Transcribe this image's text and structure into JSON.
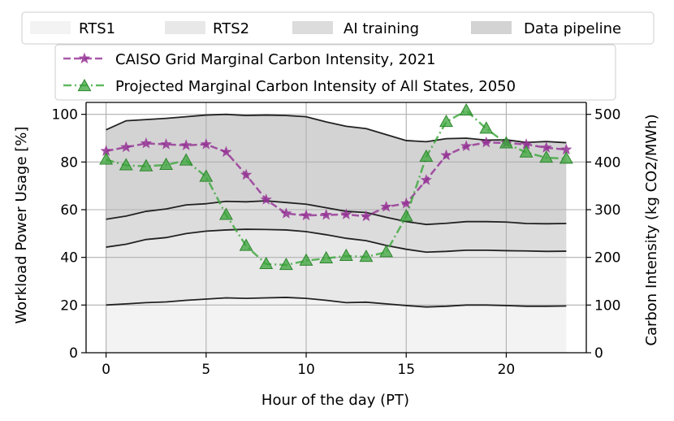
{
  "chart_data": {
    "type": "area",
    "xlabel": "Hour of the day (PT)",
    "ylabel": "Workload Power Usage [%]",
    "y2label": "Carbon Intensity (kg CO2/MWh)",
    "xlim": [
      -1,
      24
    ],
    "ylim": [
      0,
      105
    ],
    "y2lim": [
      0,
      525
    ],
    "xticks": [
      0,
      5,
      10,
      15,
      20
    ],
    "yticks": [
      0,
      20,
      40,
      60,
      80,
      100
    ],
    "y2ticks": [
      0,
      100,
      200,
      300,
      400,
      500
    ],
    "grid": true,
    "x": [
      0,
      1,
      2,
      3,
      4,
      5,
      6,
      7,
      8,
      9,
      10,
      11,
      12,
      13,
      14,
      15,
      16,
      17,
      18,
      19,
      20,
      21,
      22,
      23
    ],
    "stack_series": [
      {
        "name": "RTS1",
        "color": "#f3f3f3",
        "values": [
          20.0,
          20.5,
          21.0,
          21.3,
          22.0,
          22.5,
          23.0,
          22.8,
          23.0,
          23.2,
          22.8,
          22.0,
          21.0,
          21.2,
          20.5,
          19.8,
          19.2,
          19.5,
          20.0,
          20.0,
          19.8,
          19.5,
          19.5,
          19.6
        ]
      },
      {
        "name": "RTS2",
        "color": "#e8e8e8",
        "values": [
          24.3,
          25.0,
          26.5,
          27.0,
          28.0,
          28.5,
          28.5,
          29.0,
          28.7,
          28.3,
          28.0,
          27.5,
          27.0,
          25.8,
          24.5,
          23.6,
          23.0,
          23.0,
          23.0,
          23.0,
          23.0,
          23.2,
          23.0,
          23.0
        ]
      },
      {
        "name": "AI training",
        "color": "#dcdcdc",
        "values": [
          11.7,
          11.8,
          11.8,
          12.0,
          12.0,
          11.5,
          12.0,
          11.5,
          12.0,
          11.5,
          11.5,
          11.3,
          11.3,
          11.8,
          11.8,
          11.6,
          11.6,
          11.8,
          12.0,
          12.0,
          12.0,
          11.5,
          11.6,
          11.6
        ]
      },
      {
        "name": "Data pipeline",
        "color": "#d3d3d3",
        "values": [
          37.5,
          40.0,
          38.5,
          38.0,
          37.0,
          37.2,
          36.5,
          36.2,
          36.0,
          36.5,
          36.7,
          36.0,
          35.7,
          35.2,
          34.7,
          34.0,
          34.7,
          35.5,
          35.0,
          34.2,
          34.5,
          34.0,
          34.5,
          33.9
        ]
      }
    ],
    "line_series": [
      {
        "name": "CAISO Grid Marginal Carbon Intensity, 2021",
        "color": "#943094",
        "marker": "star",
        "linestyle": "dashed",
        "values": [
          423,
          431,
          439,
          437,
          435,
          437,
          421,
          373,
          321,
          292,
          288,
          289,
          290,
          286,
          306,
          313,
          362,
          414,
          433,
          441,
          440,
          437,
          430,
          426
        ]
      },
      {
        "name": "Projected Marginal Carbon Intensity of All States, 2050",
        "color": "#3aa63a",
        "marker": "triangle",
        "linestyle": "dashdot",
        "values": [
          405,
          393,
          391,
          394,
          403,
          369,
          289,
          224,
          186,
          184,
          193,
          198,
          203,
          201,
          211,
          286,
          411,
          484,
          508,
          470,
          439,
          420,
          409,
          407
        ]
      }
    ]
  }
}
